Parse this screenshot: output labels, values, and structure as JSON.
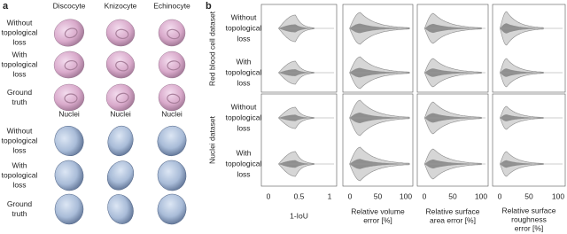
{
  "panel_a": {
    "label": "a",
    "rbc_columns": [
      "Discocyte",
      "Knizocyte",
      "Echinocyte"
    ],
    "rbc_row_labels": [
      [
        "Without",
        "topological",
        "loss"
      ],
      [
        "With",
        "topological",
        "loss"
      ],
      [
        "Ground",
        "truth"
      ]
    ],
    "nuclei_columns": [
      "Nuclei",
      "Nuclei",
      "Nuclei"
    ],
    "nuclei_row_labels": [
      [
        "Without",
        "topological",
        "loss"
      ],
      [
        "With",
        "topological",
        "loss"
      ],
      [
        "Ground",
        "truth"
      ]
    ]
  },
  "panel_b": {
    "label": "b",
    "groups": [
      "Red blood cell dataset",
      "Nuclei dataset"
    ],
    "row_labels": [
      [
        "Without",
        "topological",
        "loss"
      ],
      [
        "With",
        "topological",
        "loss"
      ],
      [
        "Without",
        "topological",
        "loss"
      ],
      [
        "With",
        "topological",
        "loss"
      ]
    ],
    "columns": [
      {
        "ticks": [
          "0",
          "0.5",
          "1"
        ],
        "label": [
          "1-IoU"
        ]
      },
      {
        "ticks": [
          "0",
          "50",
          "100"
        ],
        "label": [
          "Relative volume",
          "error [%]"
        ]
      },
      {
        "ticks": [
          "0",
          "50",
          "100"
        ],
        "label": [
          "Relative surface",
          "area error [%]"
        ]
      },
      {
        "ticks": [
          "0",
          "50",
          "100"
        ],
        "label": [
          "Relative surface",
          "roughness",
          "error [%]"
        ]
      }
    ]
  }
}
